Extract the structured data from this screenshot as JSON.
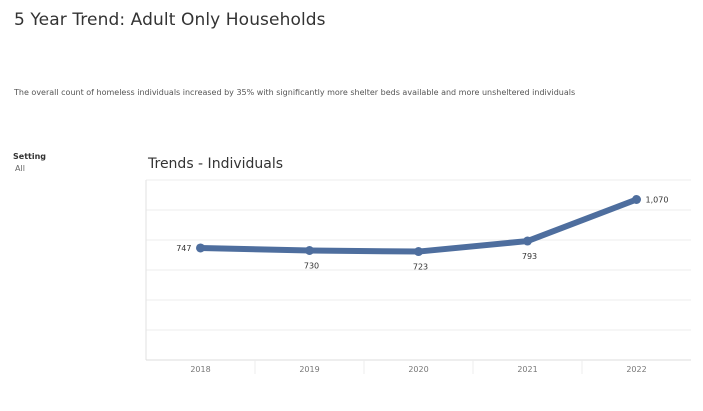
{
  "header": {
    "title": "5 Year Trend: Adult Only Households",
    "subtitle": "The overall count of homeless individuals increased by 35% with significantly more shelter beds available and more unsheltered individuals"
  },
  "filter": {
    "label": "Setting",
    "value": "All"
  },
  "chart_title": "Trends - Individuals",
  "chart_data": {
    "type": "line",
    "title": "Trends - Individuals",
    "xlabel": "",
    "ylabel": "",
    "categories": [
      "2018",
      "2019",
      "2020",
      "2021",
      "2022"
    ],
    "series": [
      {
        "values": [
          747,
          730,
          723,
          793,
          1070
        ],
        "labels": [
          "747",
          "730",
          "723",
          "793",
          "1,070"
        ],
        "color": "#4e6e9e"
      }
    ],
    "ylim": [
      0,
      1200
    ],
    "grid": true,
    "y_axis_labels_shown": false
  }
}
